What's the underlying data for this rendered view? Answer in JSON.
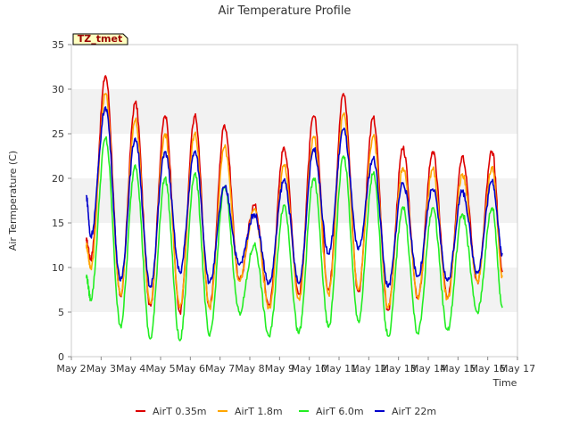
{
  "chart_data": {
    "type": "line",
    "title": "Air Temperature Profile",
    "xlabel": "Time",
    "ylabel": "Air Termperature (C)",
    "badge": "TZ_tmet",
    "x_ticks": [
      "May 2",
      "May 3",
      "May 4",
      "May 5",
      "May 6",
      "May 7",
      "May 8",
      "May 9",
      "May 10",
      "May 11",
      "May 12",
      "May 13",
      "May 14",
      "May 15",
      "May 16",
      "May 17"
    ],
    "xlim": [
      "May 2",
      "May 17"
    ],
    "ylim": [
      0,
      35
    ],
    "y_ticks": [
      0,
      5,
      10,
      15,
      20,
      25,
      30,
      35
    ],
    "legend_position": "bottom-center",
    "grid": "horizontal alternating bands",
    "colors": {
      "AirT 0.35m": "#dd0000",
      "AirT 1.8m": "#ffa500",
      "AirT 6.0m": "#22ee22",
      "AirT 22m": "#0000cc"
    },
    "series": [
      {
        "name": "AirT 0.35m",
        "daily_max": [
          31.5,
          28.5,
          27,
          27,
          26,
          17,
          23.5,
          27,
          29.5,
          26.8,
          23.3,
          23,
          22.5,
          23
        ],
        "daily_min": [
          11,
          6.8,
          5.8,
          5,
          5.5,
          8.5,
          5.8,
          7,
          7.5,
          7.3,
          5.2,
          6.5,
          6.5,
          8.5
        ],
        "start": 13,
        "end": 9.5
      },
      {
        "name": "AirT 1.8m",
        "daily_max": [
          29.5,
          26.5,
          25,
          25,
          23.5,
          16.5,
          21.5,
          24.7,
          27.2,
          24.7,
          21.2,
          21,
          20.5,
          21.3
        ],
        "daily_min": [
          10,
          7,
          6,
          5.5,
          5.5,
          8.5,
          5.5,
          6.5,
          7,
          7.5,
          5.5,
          6.7,
          6.5,
          8.5
        ],
        "start": 12.5,
        "end": 9
      },
      {
        "name": "AirT 6.0m",
        "daily_max": [
          24.5,
          21.5,
          20,
          20.5,
          19,
          12.5,
          17,
          20,
          22.5,
          20.5,
          16.8,
          16.7,
          16,
          16.7
        ],
        "daily_min": [
          6.5,
          3.5,
          2,
          1.8,
          2.3,
          5,
          2.3,
          2.6,
          3.3,
          4,
          2.3,
          2.6,
          3,
          5
        ],
        "start": 9,
        "end": 5.5
      },
      {
        "name": "AirT 22m",
        "daily_max": [
          28,
          24.5,
          23,
          23,
          19,
          16,
          19.8,
          23.3,
          25.5,
          22.2,
          19.5,
          18.8,
          18.5,
          19.7
        ],
        "daily_min": [
          13.5,
          8.5,
          7.8,
          9.5,
          8.3,
          10.3,
          8.2,
          8.2,
          11.5,
          12,
          7.8,
          9,
          8.5,
          9.5
        ],
        "start": 18,
        "end": 11.5
      }
    ]
  }
}
